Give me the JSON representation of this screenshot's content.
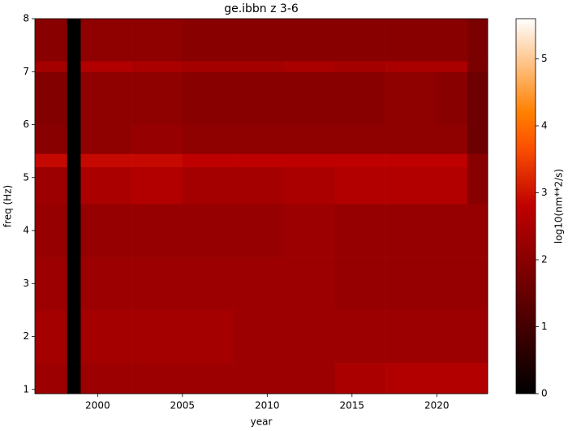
{
  "chart_data": {
    "type": "heatmap",
    "title": "ge.ibbn z 3-6",
    "x_label": "year",
    "y_label": "freq (Hz)",
    "colorbar_label": "log10(nm**2/s)",
    "colormap": "gist_heat",
    "x_edges": [
      1996.3,
      1998.2,
      1999.0,
      2002,
      2005,
      2008,
      2011,
      2014,
      2017,
      2020,
      2021.8,
      2023
    ],
    "y_edges": [
      0.92,
      1.5,
      2.5,
      3.5,
      4.5,
      5.2,
      5.45,
      6,
      7,
      7.2,
      8
    ],
    "values": [
      [
        2.3,
        0,
        2.3,
        2.3,
        2.3,
        2.3,
        2.3,
        2.5,
        2.6,
        2.6,
        2.6
      ],
      [
        2.4,
        0,
        2.4,
        2.4,
        2.4,
        2.3,
        2.3,
        2.3,
        2.3,
        2.3,
        2.3
      ],
      [
        2.3,
        0,
        2.3,
        2.3,
        2.3,
        2.3,
        2.3,
        2.2,
        2.2,
        2.2,
        2.2
      ],
      [
        2.2,
        0,
        2.2,
        2.2,
        2.2,
        2.2,
        2.3,
        2.2,
        2.2,
        2.2,
        2.2
      ],
      [
        2.3,
        0,
        2.5,
        2.6,
        2.4,
        2.4,
        2.5,
        2.6,
        2.6,
        2.6,
        2.0
      ],
      [
        2.9,
        0,
        2.9,
        2.9,
        2.8,
        2.8,
        2.8,
        2.8,
        2.8,
        2.8,
        2.0
      ],
      [
        2.0,
        0,
        2.1,
        2.2,
        2.1,
        2.1,
        2.1,
        2.1,
        2.1,
        2.1,
        1.6
      ],
      [
        1.9,
        0,
        2.1,
        2.1,
        2.0,
        2.0,
        2.0,
        2.0,
        2.1,
        2.0,
        1.6
      ],
      [
        2.4,
        0,
        2.6,
        2.5,
        2.4,
        2.4,
        2.5,
        2.4,
        2.5,
        2.5,
        1.8
      ],
      [
        2.0,
        0,
        2.1,
        2.1,
        2.0,
        2.0,
        2.0,
        2.0,
        2.0,
        2.0,
        1.8
      ]
    ],
    "xlim": [
      1996.3,
      2023
    ],
    "xticks": [
      2000,
      2005,
      2010,
      2015,
      2020
    ],
    "ylim": [
      0.92,
      8
    ],
    "yticks": [
      1,
      2,
      3,
      4,
      5,
      6,
      7,
      8
    ],
    "clim": [
      0,
      5.6
    ],
    "cticks": [
      0,
      1,
      2,
      3,
      4,
      5
    ]
  }
}
